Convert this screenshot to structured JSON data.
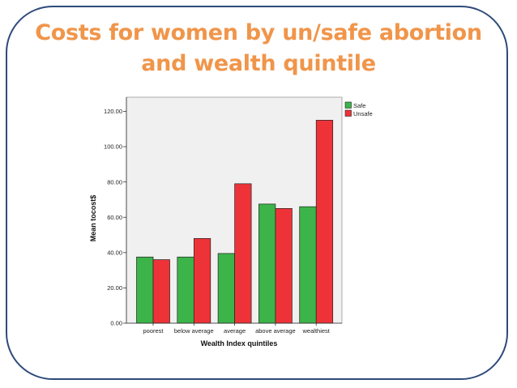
{
  "slide": {
    "title_line1": "Costs for women by un/safe abortion",
    "title_line2": "and wealth quintile"
  },
  "colors": {
    "title": "#f0954a",
    "frame": "#2e4a7a",
    "plot_background": "#f0f0f0",
    "safe": "#3cb44a",
    "unsafe": "#ee3338"
  },
  "chart_data": {
    "type": "bar",
    "xlabel": "Wealth Index quintiles",
    "ylabel": "Mean tocost$",
    "categories": [
      "poorest",
      "below average",
      "average",
      "above average",
      "wealthiest"
    ],
    "series": [
      {
        "name": "Safe",
        "color": "#3cb44a",
        "values": [
          37.5,
          37.5,
          39.5,
          67.5,
          66.0
        ]
      },
      {
        "name": "Unsafe",
        "color": "#ee3338",
        "values": [
          36.0,
          48.0,
          79.0,
          65.0,
          115.0
        ]
      }
    ],
    "ylim": [
      0,
      120
    ],
    "yticks": [
      "0.00",
      "20.00",
      "40.00",
      "60.00",
      "80.00",
      "100.00",
      "120.00"
    ],
    "grid": false,
    "legend_position": "top-right"
  }
}
